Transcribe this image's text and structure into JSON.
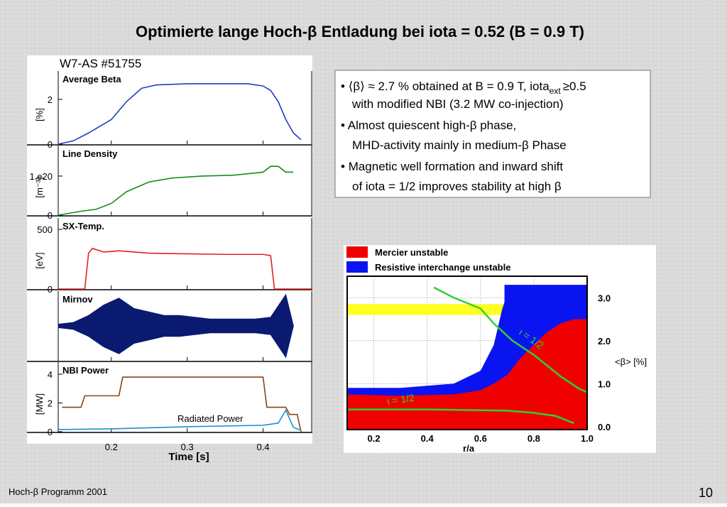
{
  "title": "Optimierte lange Hoch-β Entladung bei iota = 0.52 (B = 0.9 T)",
  "footer": {
    "left": "Hoch-β Programm 2001",
    "page": "10"
  },
  "bullets": [
    {
      "text": "⟨β⟩ ≈ 2.7 % obtained at B = 0.9 T, iota",
      "sub": "ext",
      "after": "≥0.5",
      "line2": "with modified NBI (3.2 MW co-injection)"
    },
    {
      "text": "Almost quiescent high-β phase,",
      "line2": "MHD-activity mainly in medium-β Phase"
    },
    {
      "text": "Magnetic well formation and inward shift",
      "line2": "of iota = 1/2 improves stability at high β"
    }
  ],
  "chart_data": [
    {
      "type": "panels",
      "label": "W7-AS #51755",
      "xlabel": "Time [s]",
      "xlim": [
        0.13,
        0.465
      ],
      "xticks": [
        0.2,
        0.3,
        0.4
      ],
      "panels": [
        {
          "title": "Average Beta",
          "ylabel": "[%]",
          "ylim": [
            0,
            3.27
          ],
          "yticks": [
            0,
            2
          ],
          "series": [
            {
              "color": "#1f3fbf",
              "x": [
                0.13,
                0.15,
                0.17,
                0.19,
                0.2,
                0.21,
                0.22,
                0.24,
                0.26,
                0.3,
                0.35,
                0.38,
                0.4,
                0.41,
                0.42,
                0.43,
                0.44,
                0.45
              ],
              "values": [
                0,
                0.15,
                0.5,
                0.9,
                1.1,
                1.5,
                1.9,
                2.5,
                2.65,
                2.7,
                2.7,
                2.7,
                2.6,
                2.4,
                1.9,
                1.1,
                0.5,
                0.2
              ]
            }
          ]
        },
        {
          "title": "Line Density",
          "ylabel": "[m⁻³]",
          "ylim": [
            0,
            1.78
          ],
          "yticks": [
            0,
            {
              "value": 1,
              "label": "1.e20"
            }
          ],
          "series": [
            {
              "color": "#1a8a1a",
              "x": [
                0.13,
                0.16,
                0.18,
                0.2,
                0.22,
                0.25,
                0.28,
                0.32,
                0.36,
                0.39,
                0.4,
                0.41,
                0.42,
                0.43,
                0.44
              ],
              "values": [
                0,
                0.1,
                0.15,
                0.3,
                0.6,
                0.85,
                0.95,
                1.0,
                1.02,
                1.08,
                1.1,
                1.25,
                1.25,
                1.1,
                1.1
              ]
            }
          ]
        },
        {
          "title": "SX-Temp.",
          "ylabel": "[eV]",
          "ylim": [
            0,
            595
          ],
          "yticks": [
            0,
            500
          ],
          "series": [
            {
              "color": "#e02020",
              "x": [
                0.13,
                0.165,
                0.17,
                0.175,
                0.19,
                0.21,
                0.25,
                0.3,
                0.35,
                0.4,
                0.41,
                0.415,
                0.465
              ],
              "values": [
                0,
                0,
                300,
                340,
                310,
                320,
                300,
                295,
                290,
                290,
                280,
                0,
                0
              ]
            }
          ]
        },
        {
          "title": "Mirnov",
          "ylim": [
            -1,
            1
          ],
          "yticks": [],
          "series": [
            {
              "color": "#0a1a70",
              "style": "envelope",
              "x": [
                0.13,
                0.15,
                0.17,
                0.19,
                0.21,
                0.23,
                0.25,
                0.27,
                0.29,
                0.31,
                0.33,
                0.35,
                0.37,
                0.39,
                0.41,
                0.43,
                0.44
              ],
              "values": [
                0.05,
                0.1,
                0.3,
                0.6,
                0.8,
                0.5,
                0.4,
                0.3,
                0.3,
                0.25,
                0.2,
                0.2,
                0.2,
                0.2,
                0.25,
                0.9,
                0
              ]
            }
          ]
        },
        {
          "title": "NBI Power",
          "ylabel": "[MW]",
          "ylim": [
            0,
            4.84
          ],
          "yticks": [
            0,
            2,
            4
          ],
          "series": [
            {
              "color": "#8b4513",
              "x": [
                0.135,
                0.16,
                0.165,
                0.21,
                0.215,
                0.4,
                0.405,
                0.43,
                0.435,
                0.445,
                0.45
              ],
              "values": [
                1.7,
                1.7,
                2.5,
                2.5,
                3.8,
                3.8,
                1.7,
                1.7,
                1.2,
                1.2,
                0
              ]
            },
            {
              "name": "Radiated Power",
              "color": "#1e90d0",
              "x": [
                0.13,
                0.2,
                0.3,
                0.4,
                0.42,
                0.43,
                0.435,
                0.44,
                0.45
              ],
              "values": [
                0.15,
                0.2,
                0.35,
                0.45,
                0.6,
                1.5,
                0.9,
                0.3,
                0.1
              ]
            }
          ]
        }
      ]
    },
    {
      "type": "area",
      "xlabel": "r/a",
      "ylabel": "<β> [%]",
      "xlim": [
        0.1,
        1.0
      ],
      "ylim": [
        -0.07,
        3.5
      ],
      "xticks": [
        0.2,
        0.4,
        0.6,
        0.8,
        {
          "value": 1,
          "label": "1.0"
        }
      ],
      "yticks": [
        {
          "value": 0,
          "label": "0.0"
        },
        {
          "value": 1,
          "label": "1.0"
        },
        {
          "value": 2,
          "label": "2.0"
        },
        {
          "value": 3,
          "label": "3.0"
        }
      ],
      "grid": true,
      "series": [
        {
          "name": "Resistive interchange unstable",
          "color": "#0a14f0",
          "x": [
            0.1,
            0.3,
            0.5,
            0.6,
            0.65,
            0.68,
            0.69,
            0.69,
            1.0
          ],
          "values": [
            0.9,
            0.9,
            1.0,
            1.3,
            1.9,
            2.7,
            2.9,
            3.3,
            3.3
          ]
        },
        {
          "name": "Mercier unstable",
          "color": "#f00000",
          "x": [
            0.1,
            0.3,
            0.5,
            0.6,
            0.65,
            0.7,
            0.75,
            0.8,
            0.85,
            0.9,
            0.95,
            1.0
          ],
          "values": [
            0.75,
            0.72,
            0.75,
            0.85,
            1.0,
            1.2,
            1.6,
            1.9,
            2.2,
            2.4,
            2.5,
            2.5
          ]
        }
      ],
      "band": {
        "color": "#ffff20",
        "x": [
          0.1,
          0.69
        ],
        "values": [
          2.6,
          2.85
        ]
      },
      "lines": [
        {
          "label": "ι = 1/2",
          "color": "#30d030",
          "x": [
            0.425,
            0.5,
            0.6,
            0.65,
            0.72,
            0.8,
            0.9,
            0.97,
            1.0
          ],
          "values": [
            3.24,
            3.0,
            2.75,
            2.4,
            2.0,
            1.67,
            1.17,
            0.88,
            0.8
          ]
        },
        {
          "label": "ι = 1/2",
          "color": "#30d030",
          "x": [
            0.1,
            0.4,
            0.6,
            0.7,
            0.8,
            0.88,
            0.95
          ],
          "values": [
            0.4,
            0.4,
            0.38,
            0.37,
            0.32,
            0.25,
            0.08
          ]
        }
      ]
    }
  ]
}
